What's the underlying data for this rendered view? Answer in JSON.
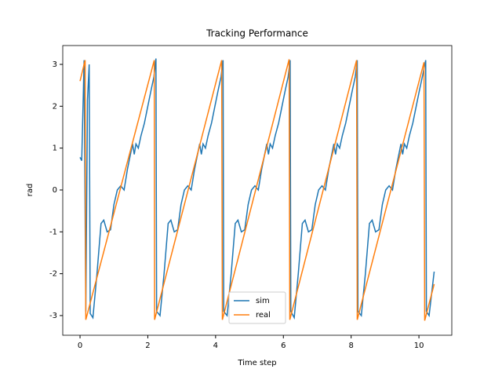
{
  "chart_data": {
    "type": "line",
    "title": "Tracking Performance",
    "x_label": "Time step",
    "y_label": "rad",
    "xlim": [
      -0.51,
      10.97
    ],
    "ylim": [
      -3.47,
      3.45
    ],
    "xticks": [
      0,
      2,
      4,
      6,
      8,
      10
    ],
    "yticks": [
      -3,
      -2,
      -1,
      0,
      1,
      2,
      3
    ],
    "legend": "lower center",
    "series": [
      {
        "name": "sim",
        "color": "#1f77b4",
        "x": [
          0,
          0.05,
          0.12,
          0.17,
          0.22,
          0.27,
          0.3,
          0.38,
          0.5,
          0.62,
          0.7,
          0.8,
          0.9,
          1.0,
          1.1,
          1.2,
          1.3,
          1.4,
          1.5,
          1.55,
          1.6,
          1.65,
          1.72,
          1.8,
          1.9,
          2.0,
          2.1,
          2.18,
          2.24,
          2.26,
          2.36,
          2.48,
          2.6,
          2.68,
          2.78,
          2.88,
          2.98,
          3.08,
          3.18,
          3.28,
          3.38,
          3.48,
          3.53,
          3.58,
          3.63,
          3.7,
          3.78,
          3.88,
          3.98,
          4.08,
          4.16,
          4.22,
          4.24,
          4.34,
          4.46,
          4.58,
          4.66,
          4.76,
          4.86,
          4.96,
          5.06,
          5.16,
          5.26,
          5.36,
          5.46,
          5.51,
          5.56,
          5.61,
          5.68,
          5.76,
          5.86,
          5.96,
          6.06,
          6.14,
          6.2,
          6.22,
          6.32,
          6.44,
          6.56,
          6.64,
          6.74,
          6.84,
          6.94,
          7.04,
          7.14,
          7.24,
          7.34,
          7.44,
          7.49,
          7.54,
          7.59,
          7.66,
          7.74,
          7.84,
          7.94,
          8.04,
          8.12,
          8.18,
          8.2,
          8.3,
          8.42,
          8.54,
          8.62,
          8.72,
          8.82,
          8.92,
          9.02,
          9.12,
          9.22,
          9.32,
          9.42,
          9.47,
          9.52,
          9.57,
          9.64,
          9.72,
          9.82,
          9.92,
          10.02,
          10.1,
          10.2,
          10.22,
          10.3,
          10.45
        ],
        "values": [
          0.78,
          0.7,
          3.1,
          -2.9,
          2.15,
          3.0,
          -2.95,
          -3.05,
          -2.0,
          -0.8,
          -0.72,
          -1.0,
          -0.95,
          -0.35,
          0.0,
          0.1,
          0.0,
          0.5,
          0.9,
          1.1,
          0.85,
          1.1,
          1.0,
          1.3,
          1.6,
          2.0,
          2.4,
          2.7,
          3.14,
          -2.9,
          -3.0,
          -2.0,
          -0.8,
          -0.72,
          -1.0,
          -0.95,
          -0.35,
          0.0,
          0.1,
          0.0,
          0.5,
          0.9,
          1.1,
          0.85,
          1.1,
          1.0,
          1.3,
          1.6,
          2.0,
          2.4,
          2.7,
          3.1,
          -2.9,
          -3.0,
          -2.0,
          -0.8,
          -0.72,
          -1.0,
          -0.95,
          -0.35,
          0.0,
          0.1,
          0.0,
          0.5,
          0.9,
          1.1,
          0.85,
          1.1,
          1.0,
          1.3,
          1.6,
          2.0,
          2.4,
          2.7,
          3.1,
          -2.9,
          -3.05,
          -2.0,
          -0.8,
          -0.72,
          -1.0,
          -0.95,
          -0.35,
          0.0,
          0.1,
          0.0,
          0.5,
          0.9,
          1.1,
          0.85,
          1.1,
          1.0,
          1.3,
          1.6,
          2.0,
          2.4,
          2.7,
          3.1,
          -2.9,
          -3.0,
          -2.0,
          -0.8,
          -0.72,
          -1.0,
          -0.95,
          -0.35,
          0.0,
          0.1,
          0.0,
          0.5,
          0.9,
          1.1,
          0.85,
          1.1,
          1.0,
          1.3,
          1.6,
          2.0,
          2.4,
          2.7,
          3.1,
          -2.9,
          -3.0,
          -1.95
        ]
      },
      {
        "name": "real",
        "color": "#ff7f0e",
        "x": [
          0,
          0.15,
          0.17,
          2.19,
          2.2,
          4.18,
          4.2,
          6.17,
          6.19,
          8.16,
          8.18,
          10.15,
          10.17,
          10.45
        ],
        "values": [
          2.6,
          3.1,
          -3.1,
          3.1,
          -3.1,
          3.1,
          -3.1,
          3.12,
          -3.1,
          3.1,
          -3.1,
          3.05,
          -3.12,
          -2.25
        ]
      }
    ]
  }
}
